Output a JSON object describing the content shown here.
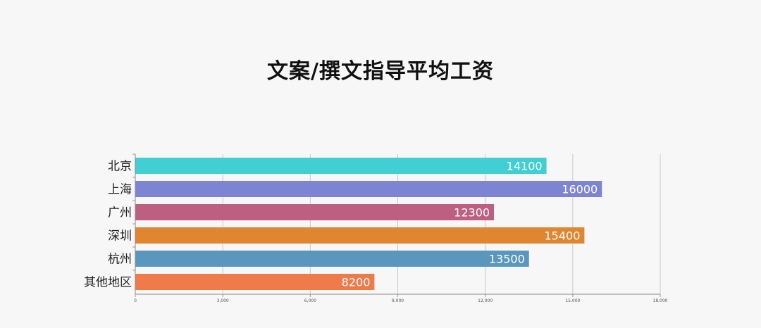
{
  "chart_data": {
    "type": "bar",
    "orientation": "horizontal",
    "title": "文案/撰文指导平均工资",
    "categories": [
      "北京",
      "上海",
      "广州",
      "深圳",
      "杭州",
      "其他地区"
    ],
    "values": [
      14100,
      16000,
      12300,
      15400,
      13500,
      8200
    ],
    "colors": [
      "#41cfd3",
      "#7d84d4",
      "#bc5f80",
      "#e08631",
      "#5b97bc",
      "#ef7b4b"
    ],
    "xlim": [
      0,
      18000
    ],
    "xticks": [
      0,
      3000,
      6000,
      9000,
      12000,
      15000,
      18000
    ],
    "xtick_labels": [
      "0",
      "3,000",
      "6,000",
      "9,000",
      "12,000",
      "15,000",
      "18,000"
    ],
    "grid": "vertical",
    "legend": "none",
    "data_labels": "inside-end"
  }
}
